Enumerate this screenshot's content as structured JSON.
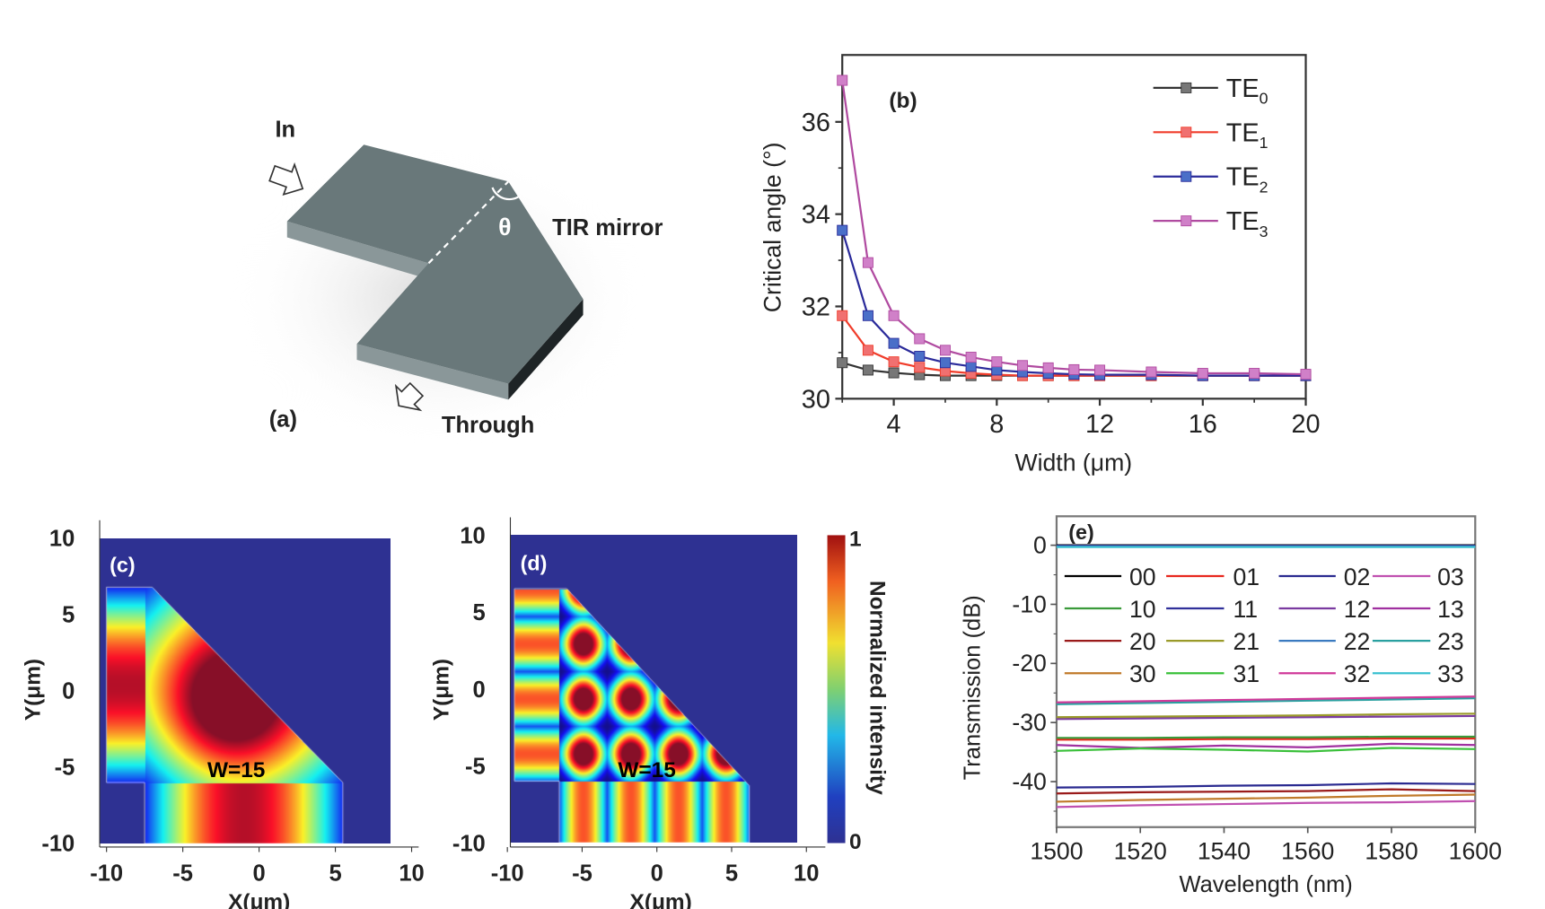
{
  "panel_a": {
    "label": "(a)",
    "in_label": "In",
    "through_label": "Through",
    "mirror_label": "TIR mirror",
    "angle_label": "θ",
    "slab_color": "#69787a"
  },
  "chart_data": [
    {
      "id": "b",
      "type": "line",
      "panel_label": "(b)",
      "xlabel": "Width (μm)",
      "ylabel": "Critical angle (°)",
      "xlim": [
        2,
        20
      ],
      "ylim": [
        30,
        37.45
      ],
      "xticks": [
        4,
        8,
        12,
        16,
        20
      ],
      "yticks": [
        30,
        32,
        34,
        36
      ],
      "grid": false,
      "legend_position": "top-right",
      "marker": "square",
      "x": [
        2,
        3,
        4,
        5,
        6,
        7,
        8,
        9,
        10,
        11,
        12,
        14,
        16,
        18,
        20
      ],
      "series": [
        {
          "name": "TE0",
          "base": "TE",
          "sub": "0",
          "color": "#333333",
          "marker_color": "#777777",
          "values": [
            30.78,
            30.62,
            30.56,
            30.52,
            30.5,
            30.5,
            30.5,
            30.5,
            30.5,
            30.5,
            30.5,
            30.5,
            30.5,
            30.5,
            30.5
          ]
        },
        {
          "name": "TE1",
          "base": "TE",
          "sub": "1",
          "color": "#f03c2a",
          "marker_color": "#f07070",
          "values": [
            31.8,
            31.05,
            30.8,
            30.68,
            30.6,
            30.55,
            30.52,
            30.5,
            30.5,
            30.5,
            30.5,
            30.5,
            30.5,
            30.5,
            30.5
          ]
        },
        {
          "name": "TE2",
          "base": "TE",
          "sub": "2",
          "color": "#2a2a9a",
          "marker_color": "#4a6fc8",
          "values": [
            33.65,
            31.8,
            31.2,
            30.92,
            30.78,
            30.7,
            30.62,
            30.58,
            30.55,
            30.53,
            30.52,
            30.52,
            30.5,
            30.5,
            30.5
          ]
        },
        {
          "name": "TE3",
          "base": "TE",
          "sub": "3",
          "color": "#b04aa0",
          "marker_color": "#d080c8",
          "values": [
            36.9,
            32.95,
            31.8,
            31.3,
            31.05,
            30.9,
            30.8,
            30.72,
            30.67,
            30.63,
            30.62,
            30.58,
            30.55,
            30.55,
            30.53
          ]
        }
      ]
    },
    {
      "id": "c",
      "type": "heatmap",
      "panel_label": "(c)",
      "annotation": "W=15",
      "xlabel": "X(μm)",
      "ylabel": "Y(μm)",
      "xticks": [
        -10,
        -5,
        0,
        5,
        10
      ],
      "yticks": [
        10,
        5,
        0,
        -5,
        -10
      ],
      "xlim": [
        -10.45,
        8.63
      ],
      "ylim": [
        -10,
        10
      ],
      "colormap": "jet"
    },
    {
      "id": "d",
      "type": "heatmap",
      "panel_label": "(d)",
      "annotation": "W=15",
      "xlabel": "X(μm)",
      "ylabel": "Y(μm)",
      "xticks": [
        -10,
        -5,
        0,
        5,
        10
      ],
      "yticks": [
        10,
        5,
        0,
        -5,
        -10
      ],
      "xlim": [
        -9.8,
        9.4
      ],
      "ylim": [
        -10,
        10
      ],
      "colormap": "jet",
      "colorbar": {
        "label": "Normalized intensity",
        "max_label": "1",
        "min_label": "0"
      }
    },
    {
      "id": "e",
      "type": "line",
      "panel_label": "(e)",
      "xlabel": "Wavelength (nm)",
      "ylabel": "Transmission (dB)",
      "xlim": [
        1500,
        1600
      ],
      "ylim": [
        -47.7,
        4.9
      ],
      "xticks": [
        1500,
        1520,
        1540,
        1560,
        1580,
        1600
      ],
      "yticks": [
        0,
        -10,
        -20,
        -30,
        -40
      ],
      "grid": false,
      "legend_position": "top (4 columns)",
      "x": [
        1500,
        1520,
        1540,
        1560,
        1580,
        1600
      ],
      "series": [
        {
          "name": "00",
          "color": "#000000",
          "values": [
            0,
            0,
            0,
            0,
            0,
            0
          ]
        },
        {
          "name": "01",
          "color": "#e8281e",
          "values": [
            -32.9,
            -32.9,
            -32.8,
            -32.8,
            -32.7,
            -32.7
          ]
        },
        {
          "name": "02",
          "color": "#2a2a90",
          "values": [
            -41,
            -40.9,
            -40.7,
            -40.6,
            -40.3,
            -40.4
          ]
        },
        {
          "name": "03",
          "color": "#c050b0",
          "values": [
            -44.3,
            -44,
            -43.8,
            -43.6,
            -43.5,
            -43.3
          ]
        },
        {
          "name": "10",
          "color": "#3a9a3a",
          "values": [
            -32.6,
            -32.6,
            -32.5,
            -32.5,
            -32.4,
            -32.4
          ]
        },
        {
          "name": "11",
          "color": "#30309a",
          "values": [
            -0.1,
            -0.1,
            -0.1,
            -0.1,
            -0.1,
            -0.1
          ]
        },
        {
          "name": "12",
          "color": "#7a3aa0",
          "values": [
            -29.4,
            -29.3,
            -29.2,
            -29.1,
            -29,
            -28.9
          ]
        },
        {
          "name": "13",
          "color": "#a030a0",
          "values": [
            -33.8,
            -34.3,
            -33.9,
            -34.2,
            -33.6,
            -33.8
          ]
        },
        {
          "name": "20",
          "color": "#9a1a1a",
          "values": [
            -42,
            -41.8,
            -41.7,
            -41.6,
            -41.3,
            -41.6
          ]
        },
        {
          "name": "21",
          "color": "#9a9a2a",
          "values": [
            -29.1,
            -29,
            -28.9,
            -28.8,
            -28.6,
            -28.5
          ]
        },
        {
          "name": "22",
          "color": "#3a7ac0",
          "values": [
            -0.2,
            -0.2,
            -0.2,
            -0.2,
            -0.2,
            -0.2
          ]
        },
        {
          "name": "23",
          "color": "#2aa0a0",
          "values": [
            -26.9,
            -26.7,
            -26.5,
            -26.3,
            -26.1,
            -25.9
          ]
        },
        {
          "name": "30",
          "color": "#c07a2a",
          "values": [
            -43.4,
            -43.1,
            -42.9,
            -42.7,
            -42.4,
            -42.2
          ]
        },
        {
          "name": "31",
          "color": "#3ac03a",
          "values": [
            -34.8,
            -34.4,
            -34.6,
            -34.9,
            -34.3,
            -34.5
          ]
        },
        {
          "name": "32",
          "color": "#d03a9a",
          "values": [
            -26.6,
            -26.4,
            -26.2,
            -26,
            -25.8,
            -25.6
          ]
        },
        {
          "name": "33",
          "color": "#3ac0d0",
          "values": [
            -0.3,
            -0.3,
            -0.3,
            -0.3,
            -0.3,
            -0.3
          ]
        }
      ]
    }
  ]
}
